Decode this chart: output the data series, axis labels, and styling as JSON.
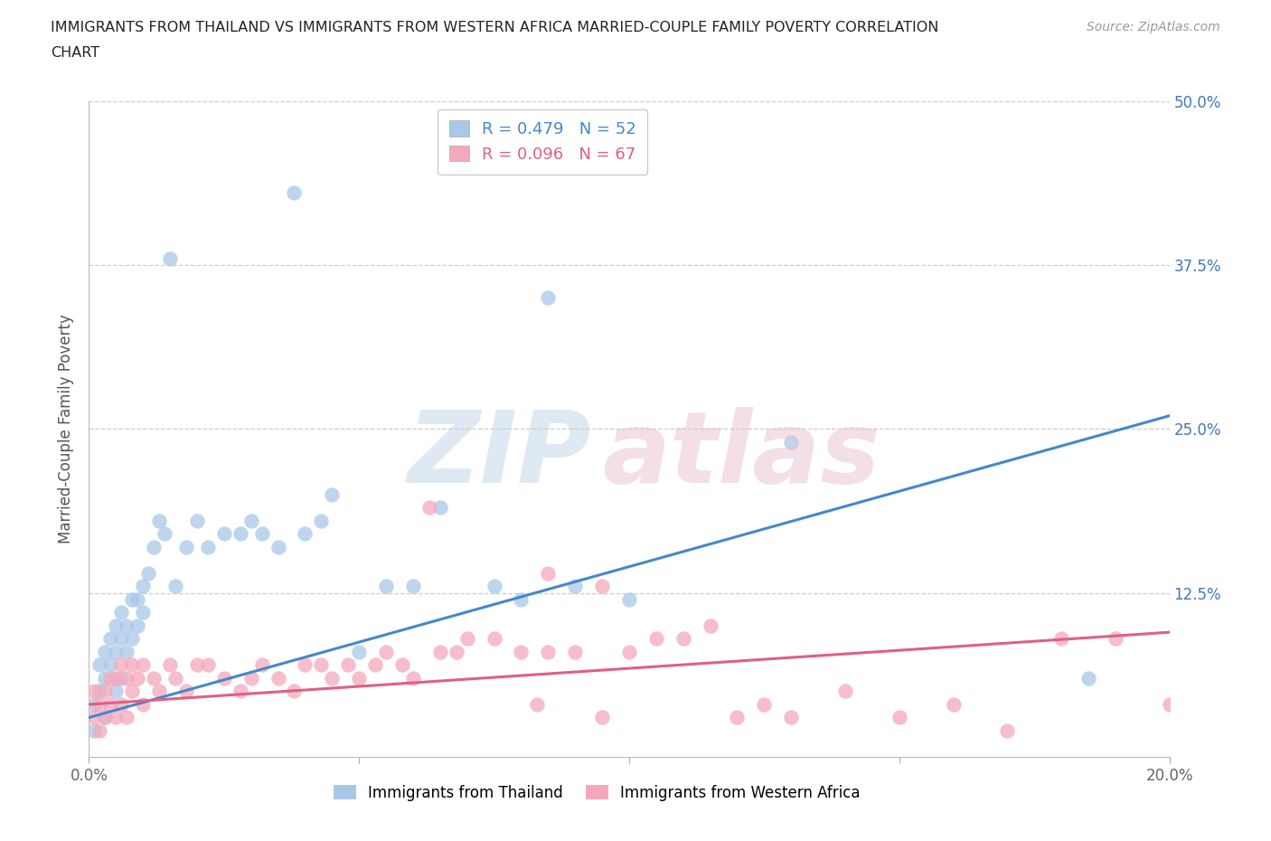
{
  "title_line1": "IMMIGRANTS FROM THAILAND VS IMMIGRANTS FROM WESTERN AFRICA MARRIED-COUPLE FAMILY POVERTY CORRELATION",
  "title_line2": "CHART",
  "source": "Source: ZipAtlas.com",
  "ylabel": "Married-Couple Family Poverty",
  "xlim": [
    0.0,
    0.2
  ],
  "ylim": [
    0.0,
    0.5
  ],
  "xticks": [
    0.0,
    0.05,
    0.1,
    0.15,
    0.2
  ],
  "xticklabels": [
    "0.0%",
    "",
    "",
    "",
    "20.0%"
  ],
  "yticks": [
    0.0,
    0.125,
    0.25,
    0.375,
    0.5
  ],
  "yticklabels_right": [
    "",
    "12.5%",
    "25.0%",
    "37.5%",
    "50.0%"
  ],
  "thailand_color": "#a8c8e8",
  "thailand_line_color": "#4488cc",
  "western_africa_color": "#f4a8bc",
  "western_africa_line_color": "#e06080",
  "R_thailand": 0.479,
  "N_thailand": 52,
  "R_western_africa": 0.096,
  "N_western_africa": 67,
  "legend_color_thailand": "#4488cc",
  "legend_color_western": "#e06080",
  "thailand_x": [
    0.001,
    0.001,
    0.002,
    0.002,
    0.003,
    0.003,
    0.003,
    0.004,
    0.004,
    0.005,
    0.005,
    0.005,
    0.006,
    0.006,
    0.006,
    0.007,
    0.007,
    0.008,
    0.008,
    0.009,
    0.009,
    0.01,
    0.01,
    0.011,
    0.012,
    0.013,
    0.014,
    0.015,
    0.016,
    0.018,
    0.02,
    0.022,
    0.025,
    0.028,
    0.03,
    0.032,
    0.035,
    0.038,
    0.04,
    0.043,
    0.045,
    0.05,
    0.055,
    0.06,
    0.065,
    0.075,
    0.08,
    0.085,
    0.09,
    0.1,
    0.13,
    0.185
  ],
  "thailand_y": [
    0.02,
    0.04,
    0.05,
    0.07,
    0.03,
    0.06,
    0.08,
    0.07,
    0.09,
    0.05,
    0.08,
    0.1,
    0.06,
    0.09,
    0.11,
    0.08,
    0.1,
    0.09,
    0.12,
    0.1,
    0.12,
    0.11,
    0.13,
    0.14,
    0.16,
    0.18,
    0.17,
    0.38,
    0.13,
    0.16,
    0.18,
    0.16,
    0.17,
    0.17,
    0.18,
    0.17,
    0.16,
    0.43,
    0.17,
    0.18,
    0.2,
    0.08,
    0.13,
    0.13,
    0.19,
    0.13,
    0.12,
    0.35,
    0.13,
    0.12,
    0.24,
    0.06
  ],
  "western_africa_x": [
    0.001,
    0.001,
    0.002,
    0.002,
    0.003,
    0.003,
    0.004,
    0.004,
    0.005,
    0.005,
    0.006,
    0.006,
    0.007,
    0.007,
    0.008,
    0.008,
    0.009,
    0.01,
    0.01,
    0.012,
    0.013,
    0.015,
    0.016,
    0.018,
    0.02,
    0.022,
    0.025,
    0.028,
    0.03,
    0.032,
    0.035,
    0.038,
    0.04,
    0.043,
    0.045,
    0.048,
    0.05,
    0.053,
    0.055,
    0.058,
    0.06,
    0.063,
    0.065,
    0.068,
    0.07,
    0.075,
    0.08,
    0.083,
    0.085,
    0.09,
    0.095,
    0.1,
    0.105,
    0.11,
    0.115,
    0.12,
    0.125,
    0.13,
    0.14,
    0.15,
    0.16,
    0.17,
    0.18,
    0.19,
    0.2,
    0.095,
    0.085
  ],
  "western_africa_y": [
    0.03,
    0.05,
    0.02,
    0.04,
    0.03,
    0.05,
    0.04,
    0.06,
    0.03,
    0.06,
    0.04,
    0.07,
    0.03,
    0.06,
    0.05,
    0.07,
    0.06,
    0.04,
    0.07,
    0.06,
    0.05,
    0.07,
    0.06,
    0.05,
    0.07,
    0.07,
    0.06,
    0.05,
    0.06,
    0.07,
    0.06,
    0.05,
    0.07,
    0.07,
    0.06,
    0.07,
    0.06,
    0.07,
    0.08,
    0.07,
    0.06,
    0.19,
    0.08,
    0.08,
    0.09,
    0.09,
    0.08,
    0.04,
    0.08,
    0.08,
    0.03,
    0.08,
    0.09,
    0.09,
    0.1,
    0.03,
    0.04,
    0.03,
    0.05,
    0.03,
    0.04,
    0.02,
    0.09,
    0.09,
    0.04,
    0.13,
    0.14
  ],
  "thailand_trend_x": [
    0.0,
    0.2
  ],
  "thailand_trend_y": [
    0.03,
    0.26
  ],
  "western_trend_x": [
    0.0,
    0.2
  ],
  "western_trend_y": [
    0.04,
    0.095
  ]
}
